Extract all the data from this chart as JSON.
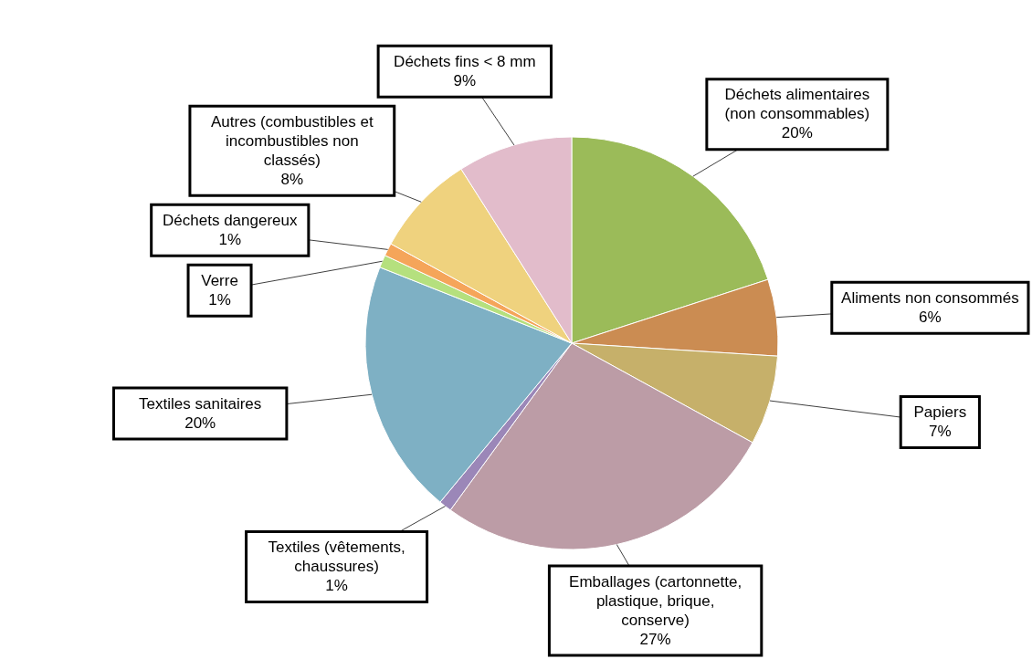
{
  "chart_data": {
    "type": "pie",
    "categories": [
      "Déchets alimentaires (non consommables)",
      "Aliments non consommés",
      "Papiers",
      "Emballages (cartonnette, plastique, brique, conserve)",
      "Textiles (vêtements, chaussures)",
      "Textiles sanitaires",
      "Verre",
      "Déchets dangereux",
      "Autres (combustibles et incombustibles non classés)",
      "Déchets fins < 8 mm"
    ],
    "values": [
      20,
      6,
      7,
      27,
      1,
      20,
      1,
      1,
      8,
      9
    ],
    "colors": [
      "#9bbb59",
      "#cb8c52",
      "#c6b06a",
      "#bc9ca6",
      "#9b87b8",
      "#7eb0c4",
      "#b5e07e",
      "#f5a55a",
      "#efd27e",
      "#e2bccb"
    ],
    "value_labels": [
      "20%",
      "6%",
      "7%",
      "27%",
      "1%",
      "20%",
      "1%",
      "1%",
      "8%",
      "9%"
    ]
  }
}
